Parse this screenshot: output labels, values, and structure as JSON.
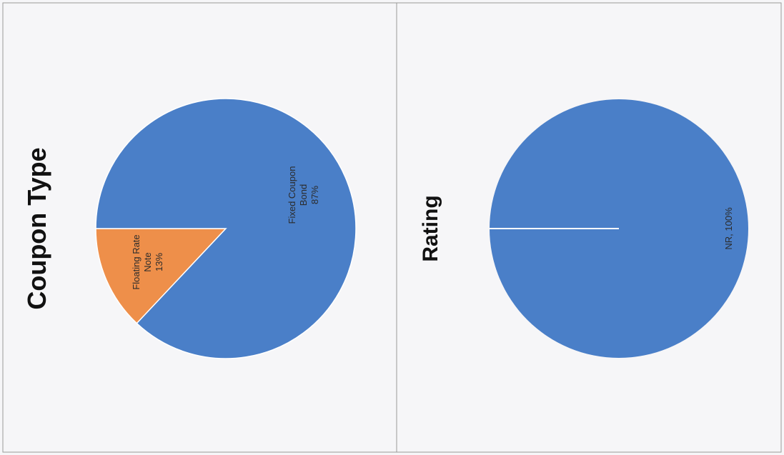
{
  "chart_data": [
    {
      "type": "pie",
      "title": "Coupon Type",
      "categories": [
        "Floating Rate Note",
        "Fixed Coupon Bond"
      ],
      "values": [
        13,
        87
      ],
      "value_labels": [
        "13%",
        "87%"
      ],
      "colors": [
        "#ee8f4a",
        "#4a7fc8"
      ]
    },
    {
      "type": "pie",
      "title": "Rating",
      "categories": [
        "NR"
      ],
      "values": [
        100
      ],
      "value_labels": [
        "NR, 100%"
      ],
      "colors": [
        "#4a7fc8"
      ]
    }
  ]
}
